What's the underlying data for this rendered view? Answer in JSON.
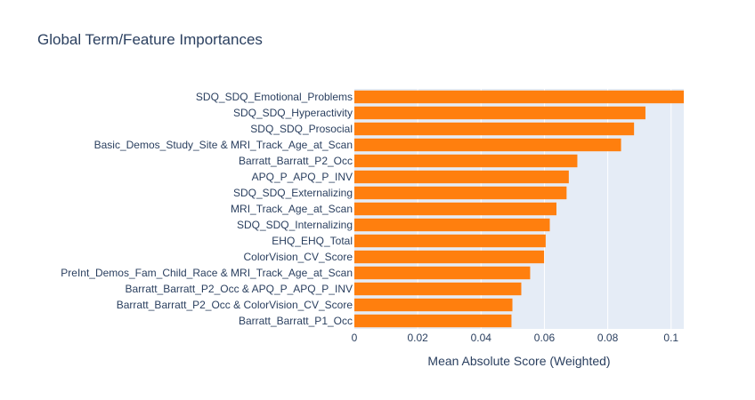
{
  "chart_data": {
    "type": "bar",
    "orientation": "horizontal",
    "title": "Global Term/Feature Importances",
    "xlabel": "Mean Absolute Score (Weighted)",
    "ylabel": "",
    "xlim": [
      0,
      0.104
    ],
    "xticks": [
      0,
      0.02,
      0.04,
      0.06,
      0.08,
      0.1
    ],
    "xtick_labels": [
      "0",
      "0.02",
      "0.04",
      "0.06",
      "0.08",
      "0.1"
    ],
    "grid": true,
    "colors": {
      "bar": "#ff7f0e",
      "plot_bg": "#e5ecf6",
      "grid": "#ffffff",
      "text": "#2a3f5f"
    },
    "categories": [
      "SDQ_SDQ_Emotional_Problems",
      "SDQ_SDQ_Hyperactivity",
      "SDQ_SDQ_Prosocial",
      "Basic_Demos_Study_Site & MRI_Track_Age_at_Scan",
      "Barratt_Barratt_P2_Occ",
      "APQ_P_APQ_P_INV",
      "SDQ_SDQ_Externalizing",
      "MRI_Track_Age_at_Scan",
      "SDQ_SDQ_Internalizing",
      "EHQ_EHQ_Total",
      "ColorVision_CV_Score",
      "PreInt_Demos_Fam_Child_Race & MRI_Track_Age_at_Scan",
      "Barratt_Barratt_P2_Occ & APQ_P_APQ_P_INV",
      "Barratt_Barratt_P2_Occ & ColorVision_CV_Score",
      "Barratt_Barratt_P1_Occ"
    ],
    "values": [
      0.1043,
      0.0919,
      0.0883,
      0.0842,
      0.0704,
      0.0677,
      0.067,
      0.0638,
      0.0617,
      0.0604,
      0.0599,
      0.0555,
      0.0527,
      0.0499,
      0.0496
    ]
  }
}
